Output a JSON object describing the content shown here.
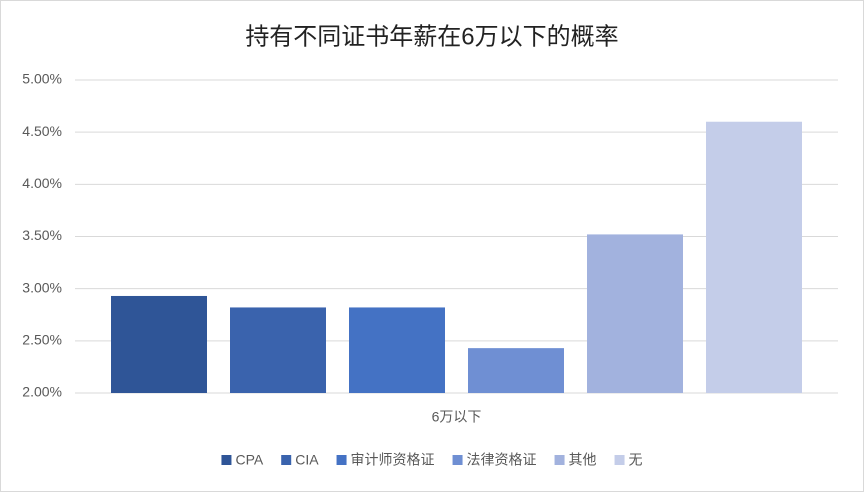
{
  "chart_data": {
    "type": "bar",
    "title": "持有不同证书年薪在6万以下的概率",
    "categories": [
      "6万以下"
    ],
    "series": [
      {
        "name": "CPA",
        "color": "#2f5597",
        "values": [
          2.93
        ]
      },
      {
        "name": "CIA",
        "color": "#3a63ad",
        "values": [
          2.82
        ]
      },
      {
        "name": "审计师资格证",
        "color": "#4472c4",
        "values": [
          2.82
        ]
      },
      {
        "name": "法律资格证",
        "color": "#6f8fd3",
        "values": [
          2.43
        ]
      },
      {
        "name": "其他",
        "color": "#a2b2de",
        "values": [
          3.52
        ]
      },
      {
        "name": "无",
        "color": "#c4cde9",
        "values": [
          4.6
        ]
      }
    ],
    "ylim": [
      2,
      5
    ],
    "yticks": [
      {
        "value": 2,
        "label": "2.00%"
      },
      {
        "value": 2.5,
        "label": "2.50%"
      },
      {
        "value": 3,
        "label": "3.00%"
      },
      {
        "value": 3.5,
        "label": "3.50%"
      },
      {
        "value": 4,
        "label": "4.00%"
      },
      {
        "value": 4.5,
        "label": "4.50%"
      },
      {
        "value": 5,
        "label": "5.00%"
      }
    ],
    "grid": true,
    "legend": "bottom"
  }
}
